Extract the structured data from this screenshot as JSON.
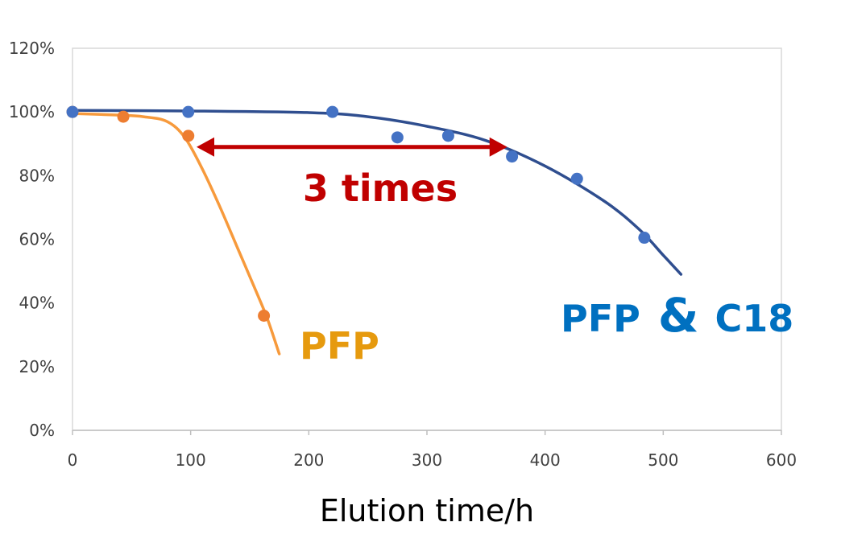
{
  "chart_data": {
    "type": "scatter",
    "title": "",
    "xlabel": "Elution time/h",
    "ylabel": "",
    "xlim": [
      0,
      600
    ],
    "ylim": [
      0,
      120
    ],
    "x_ticks": [
      "0",
      "100",
      "200",
      "300",
      "400",
      "500",
      "600"
    ],
    "y_ticks": [
      "0%",
      "20%",
      "40%",
      "60%",
      "80%",
      "100%",
      "120%"
    ],
    "grid": false,
    "series": [
      {
        "name": "PFP",
        "color": "#ED7D31",
        "line_color": "#F79A3C",
        "points": [
          [
            0,
            100
          ],
          [
            43,
            98.5
          ],
          [
            98,
            92.5
          ],
          [
            162,
            36
          ]
        ],
        "fit_curve": [
          [
            0,
            99.5
          ],
          [
            40,
            99
          ],
          [
            60,
            98.5
          ],
          [
            80,
            97
          ],
          [
            95,
            92
          ],
          [
            110,
            82
          ],
          [
            125,
            70
          ],
          [
            140,
            57
          ],
          [
            155,
            44
          ],
          [
            165,
            35
          ],
          [
            175,
            24
          ]
        ]
      },
      {
        "name": "PFP&C18",
        "color": "#4472C4",
        "line_color": "#2F4E8F",
        "points": [
          [
            0,
            100
          ],
          [
            98,
            100
          ],
          [
            220,
            100
          ],
          [
            275,
            92
          ],
          [
            318,
            92.5
          ],
          [
            372,
            86
          ],
          [
            427,
            79
          ],
          [
            484,
            60.5
          ]
        ],
        "fit_curve": [
          [
            0,
            100.5
          ],
          [
            100,
            100.3
          ],
          [
            200,
            99.8
          ],
          [
            250,
            98.5
          ],
          [
            300,
            95.5
          ],
          [
            350,
            91
          ],
          [
            400,
            83
          ],
          [
            450,
            72
          ],
          [
            480,
            63
          ],
          [
            500,
            55
          ],
          [
            515,
            49
          ]
        ]
      }
    ],
    "annotations": [
      {
        "text": "3 times",
        "color": "#C00000"
      },
      {
        "text": "PFP",
        "color": "#E69A0E"
      },
      {
        "text": "PFP",
        "color": "#0070C0"
      },
      {
        "text": "&",
        "color": "#0070C0"
      },
      {
        "text": "C18",
        "color": "#0070C0"
      }
    ],
    "arrow": {
      "from_x": 105,
      "to_x": 368,
      "y": 89,
      "color": "#C00000"
    }
  }
}
